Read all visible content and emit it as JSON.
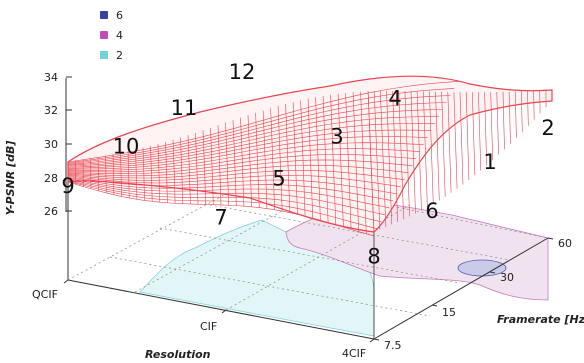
{
  "chart_data": {
    "type": "surface3d",
    "zlabel": "Y-PSNR [dB]",
    "xlabel": "Resolution",
    "ylabel": "Framerate [Hz]",
    "x_ticks": [
      "QCIF",
      "CIF",
      "4CIF"
    ],
    "y_ticks": [
      "7.5",
      "15",
      "30",
      "60"
    ],
    "z_ticks": [
      "26",
      "28",
      "30",
      "32",
      "34"
    ],
    "zlim": [
      24,
      34
    ],
    "legend": {
      "placement": "top-left",
      "entries": [
        {
          "label": "6",
          "color": "#3a3f9a"
        },
        {
          "label": "4",
          "color": "#c04fb5"
        },
        {
          "label": "2",
          "color": "#6fd3d9"
        }
      ]
    },
    "surface_color": "#e8454f",
    "points": [
      {
        "label": "1",
        "resolution": "4CIF",
        "framerate": "30",
        "psnr": 33.2
      },
      {
        "label": "2",
        "resolution": "4CIF",
        "framerate": "60",
        "psnr": 33.3
      },
      {
        "label": "3",
        "resolution": "CIF",
        "framerate": "30",
        "psnr": 31.9
      },
      {
        "label": "4",
        "resolution": "CIF",
        "framerate": "60",
        "psnr": 33.2
      },
      {
        "label": "5",
        "resolution": "CIF",
        "framerate": "15",
        "psnr": 29.4
      },
      {
        "label": "6",
        "resolution": "4CIF",
        "framerate": "15",
        "psnr": 28.6
      },
      {
        "label": "7",
        "resolution": "CIF",
        "framerate": "7.5",
        "psnr": 27.8
      },
      {
        "label": "8",
        "resolution": "4CIF",
        "framerate": "7.5",
        "psnr": 25.1
      },
      {
        "label": "9",
        "resolution": "QCIF",
        "framerate": "7.5",
        "psnr": 28.5
      },
      {
        "label": "10",
        "resolution": "QCIF",
        "framerate": "15",
        "psnr": 30.2
      },
      {
        "label": "11",
        "resolution": "QCIF",
        "framerate": "30",
        "psnr": 31.6
      },
      {
        "label": "12",
        "resolution": "QCIF",
        "framerate": "60",
        "psnr": 32.3
      }
    ]
  }
}
